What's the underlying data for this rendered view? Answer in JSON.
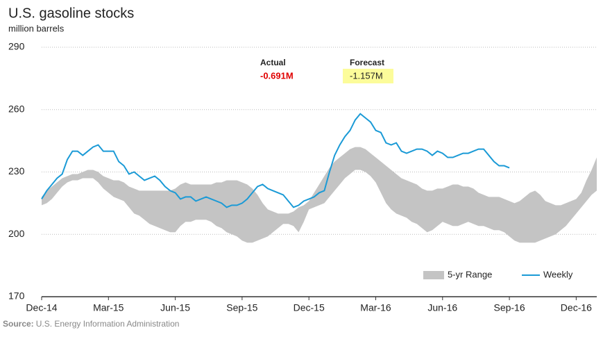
{
  "chart_data": {
    "type": "line",
    "title": "U.S. gasoline stocks",
    "subtitle": "million barrels",
    "source_label": "Source:",
    "source": "U.S. Energy Information Administration",
    "annotations": {
      "actual_label": "Actual",
      "actual": "-0.691M",
      "forecast_label": "Forecast",
      "forecast": "-1.157M"
    },
    "categories": [
      "Dec-14",
      null,
      null,
      null,
      null,
      null,
      null,
      null,
      null,
      null,
      null,
      null,
      null,
      "Mar-15",
      null,
      null,
      null,
      null,
      null,
      null,
      null,
      null,
      null,
      null,
      null,
      null,
      "Jun-15",
      null,
      null,
      null,
      null,
      null,
      null,
      null,
      null,
      null,
      null,
      null,
      null,
      "Sep-15",
      null,
      null,
      null,
      null,
      null,
      null,
      null,
      null,
      null,
      null,
      null,
      null,
      "Dec-15",
      null,
      null,
      null,
      null,
      null,
      null,
      null,
      null,
      null,
      null,
      null,
      null,
      "Mar-16",
      null,
      null,
      null,
      null,
      null,
      null,
      null,
      null,
      null,
      null,
      null,
      null,
      "Jun-16",
      null,
      null,
      null,
      null,
      null,
      null,
      null,
      null,
      null,
      null,
      null,
      null,
      "Sep-16",
      null,
      null,
      null,
      null,
      null,
      null,
      null,
      null,
      null,
      null,
      null,
      null,
      "Dec-16",
      null,
      null,
      null,
      null
    ],
    "series": [
      {
        "name": "5-yr Range",
        "color": "#c4c4c4",
        "high": [
          218,
          221,
          223,
          225,
          227,
          228,
          229,
          229,
          230,
          231,
          231,
          230,
          228,
          227,
          226,
          226,
          225,
          223,
          222,
          221,
          221,
          221,
          221,
          221,
          221,
          221,
          222,
          224,
          225,
          224,
          224,
          224,
          224,
          224,
          225,
          225,
          226,
          226,
          226,
          225,
          224,
          222,
          219,
          215,
          212,
          211,
          210,
          210,
          210,
          211,
          213,
          214,
          216,
          220,
          224,
          228,
          232,
          235,
          237,
          239,
          241,
          242,
          242,
          241,
          239,
          237,
          235,
          233,
          231,
          229,
          227,
          226,
          225,
          224,
          222,
          221,
          221,
          222,
          222,
          223,
          224,
          224,
          223,
          223,
          222,
          220,
          219,
          218,
          218,
          218,
          217,
          216,
          215,
          216,
          218,
          220,
          221,
          219,
          216,
          215,
          214,
          214,
          215,
          216,
          217,
          220,
          226,
          231,
          237
        ],
        "low": [
          214,
          215,
          217,
          220,
          223,
          225,
          226,
          226,
          227,
          227,
          227,
          225,
          222,
          220,
          218,
          217,
          216,
          213,
          210,
          209,
          207,
          205,
          204,
          203,
          202,
          201,
          201,
          204,
          206,
          206,
          207,
          207,
          207,
          206,
          204,
          203,
          201,
          200,
          199,
          197,
          196,
          196,
          197,
          198,
          199,
          201,
          203,
          205,
          205,
          204,
          201,
          206,
          212,
          213,
          214,
          215,
          218,
          221,
          224,
          227,
          229,
          231,
          231,
          230,
          228,
          225,
          220,
          215,
          212,
          210,
          209,
          208,
          206,
          205,
          203,
          201,
          202,
          204,
          206,
          205,
          204,
          204,
          205,
          206,
          205,
          204,
          204,
          203,
          202,
          202,
          201,
          199,
          197,
          196,
          196,
          196,
          196,
          197,
          198,
          199,
          200,
          202,
          204,
          207,
          210,
          213,
          216,
          219,
          221
        ]
      },
      {
        "name": "Weekly",
        "color": "#1a9ad6",
        "values": [
          217,
          221,
          224,
          227,
          229,
          236,
          240,
          240,
          238,
          240,
          242,
          243,
          240,
          240,
          240,
          235,
          233,
          229,
          230,
          228,
          226,
          227,
          228,
          226,
          223,
          221,
          220,
          217,
          218,
          218,
          216,
          217,
          218,
          217,
          216,
          215,
          213,
          214,
          214,
          215,
          217,
          220,
          223,
          224,
          222,
          221,
          220,
          219,
          216,
          213,
          214,
          216,
          217,
          218,
          220,
          221,
          230,
          238,
          243,
          247,
          250,
          255,
          258,
          256,
          254,
          250,
          249,
          244,
          243,
          244,
          240,
          239,
          240,
          241,
          241,
          240,
          238,
          240,
          239,
          237,
          237,
          238,
          239,
          239,
          240,
          241,
          241,
          238,
          235,
          233,
          233,
          232,
          null,
          null,
          null,
          null,
          null,
          null,
          null,
          null,
          null,
          null,
          null,
          null,
          null,
          null,
          null,
          null,
          null
        ]
      }
    ],
    "ylim": [
      170,
      290
    ],
    "yticks": [
      170,
      200,
      230,
      260,
      290
    ],
    "grid": true,
    "legend": "bottom-right"
  }
}
